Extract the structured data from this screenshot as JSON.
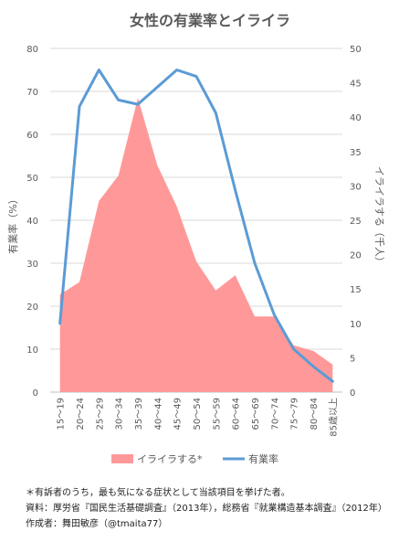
{
  "chart_data": {
    "type": "area",
    "title": "女性の有業率とイライラ",
    "categories": [
      "15〜19",
      "20〜24",
      "25〜29",
      "30〜34",
      "35〜39",
      "40〜44",
      "45〜49",
      "50〜54",
      "55〜59",
      "60〜64",
      "65〜69",
      "70〜74",
      "75〜79",
      "80〜84",
      "85歳以上"
    ],
    "series": [
      {
        "name": "イライラする*",
        "type": "area",
        "axis": "right",
        "color": "#ff9999",
        "values": [
          14.2,
          16.0,
          27.8,
          31.5,
          42.8,
          33.0,
          27.0,
          19.0,
          14.8,
          17.0,
          11.0,
          11.0,
          6.8,
          6.0,
          4.0
        ]
      },
      {
        "name": "有業率",
        "type": "line",
        "axis": "left",
        "color": "#5b9bd5",
        "values": [
          16.0,
          66.5,
          75.0,
          68.0,
          67.0,
          71.0,
          75.0,
          73.5,
          65.0,
          47.0,
          30.0,
          18.0,
          10.0,
          6.0,
          2.5
        ]
      }
    ],
    "y_left": {
      "label": "有業率（%）",
      "range": [
        0,
        80
      ],
      "ticks": [
        0,
        10,
        20,
        30,
        40,
        50,
        60,
        70,
        80
      ]
    },
    "y_right": {
      "label": "イライラする（千人）",
      "range": [
        0,
        50
      ],
      "ticks": [
        0,
        5,
        10,
        15,
        20,
        25,
        30,
        35,
        40,
        45,
        50
      ]
    },
    "grid": true,
    "legend": "bottom"
  },
  "footnotes": {
    "note": "＊有訴者のうち，最も気になる症状として当該項目を挙げた者。",
    "source": "資料：厚労省『国民生活基礎調査』（2013年），総務省『就業構造基本調査』（2012年）",
    "author": "作成者：舞田敏彦（@tmaita77）"
  }
}
